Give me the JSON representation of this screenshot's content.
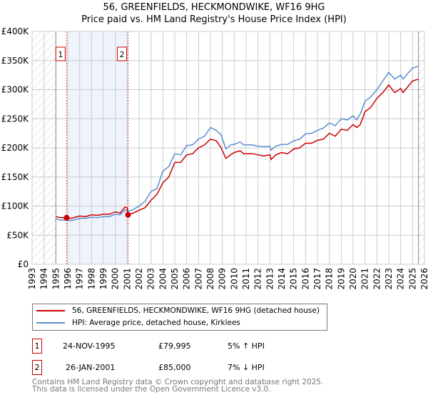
{
  "chart_data": {
    "type": "line",
    "title": "56, GREENFIELDS, HECKMONDWIKE, WF16 9HG",
    "subtitle": "Price paid vs. HM Land Registry's House Price Index (HPI)",
    "xlim": [
      1993,
      2026
    ],
    "ylim": [
      0,
      400000
    ],
    "x_ticks": [
      "1993",
      "1994",
      "1995",
      "1996",
      "1997",
      "1998",
      "1999",
      "2000",
      "2001",
      "2002",
      "2003",
      "2004",
      "2005",
      "2006",
      "2007",
      "2008",
      "2009",
      "2010",
      "2011",
      "2012",
      "2013",
      "2014",
      "2015",
      "2016",
      "2017",
      "2018",
      "2019",
      "2020",
      "2021",
      "2022",
      "2023",
      "2024",
      "2025",
      "2026"
    ],
    "y_ticks": [
      {
        "v": 0,
        "label": "£0"
      },
      {
        "v": 50000,
        "label": "£50K"
      },
      {
        "v": 100000,
        "label": "£100K"
      },
      {
        "v": 150000,
        "label": "£150K"
      },
      {
        "v": 200000,
        "label": "£200K"
      },
      {
        "v": 250000,
        "label": "£250K"
      },
      {
        "v": 300000,
        "label": "£300K"
      },
      {
        "v": 350000,
        "label": "£350K"
      },
      {
        "v": 400000,
        "label": "£400K"
      }
    ],
    "grid": true,
    "hatched_ranges": [
      [
        1993,
        1995
      ],
      [
        2025.5,
        2026
      ]
    ],
    "shaded_range": [
      1995.9,
      2001.07
    ],
    "series": [
      {
        "name": "56, GREENFIELDS, HECKMONDWIKE, WF16 9HG (detached house)",
        "color": "#cc0000",
        "x": [
          1995,
          1995.4,
          1995.9,
          1996.3,
          1997,
          1997.5,
          1998,
          1998.5,
          1999,
          1999.5,
          2000,
          2000.4,
          2000.8,
          2001.0,
          2001.07,
          2001.5,
          2002,
          2002.5,
          2003,
          2003.5,
          2004,
          2004.5,
          2005,
          2005.5,
          2006,
          2006.5,
          2007,
          2007.5,
          2008,
          2008.5,
          2008.9,
          2009.3,
          2009.7,
          2010,
          2010.5,
          2010.8,
          2011,
          2011.5,
          2012,
          2012.5,
          2013,
          2013.1,
          2013.5,
          2014,
          2014.5,
          2015,
          2015.5,
          2016,
          2016.5,
          2017,
          2017.5,
          2018,
          2018.5,
          2019,
          2019.5,
          2020,
          2020.3,
          2020.6,
          2021,
          2021.5,
          2022,
          2022.5,
          2023,
          2023.5,
          2024,
          2024.2,
          2024.6,
          2025,
          2025.5
        ],
        "y": [
          82000,
          80000,
          80000,
          79000,
          83000,
          82000,
          85000,
          84000,
          86000,
          86000,
          90000,
          88000,
          98000,
          97000,
          85000,
          88000,
          93000,
          97000,
          110000,
          120000,
          140000,
          150000,
          175000,
          175000,
          188000,
          190000,
          200000,
          205000,
          215000,
          212000,
          200000,
          182000,
          188000,
          192000,
          195000,
          190000,
          190000,
          190000,
          188000,
          186000,
          188000,
          180000,
          188000,
          192000,
          190000,
          198000,
          200000,
          208000,
          208000,
          213000,
          215000,
          225000,
          220000,
          232000,
          230000,
          240000,
          235000,
          240000,
          262000,
          270000,
          285000,
          295000,
          308000,
          295000,
          302000,
          295000,
          305000,
          315000,
          318000
        ]
      },
      {
        "name": "HPI: Average price, detached house, Kirklees",
        "color": "#5b8fd0",
        "x": [
          1995,
          1995.4,
          1995.9,
          1996.3,
          1997,
          1997.5,
          1998,
          1998.5,
          1999,
          1999.5,
          2000,
          2000.4,
          2000.8,
          2001.0,
          2001.07,
          2001.5,
          2002,
          2002.5,
          2003,
          2003.5,
          2004,
          2004.5,
          2005,
          2005.5,
          2006,
          2006.5,
          2007,
          2007.5,
          2008,
          2008.5,
          2008.9,
          2009.3,
          2009.7,
          2010,
          2010.5,
          2010.8,
          2011,
          2011.5,
          2012,
          2012.5,
          2013,
          2013.1,
          2013.5,
          2014,
          2014.5,
          2015,
          2015.5,
          2016,
          2016.5,
          2017,
          2017.5,
          2018,
          2018.5,
          2019,
          2019.5,
          2020,
          2020.3,
          2020.6,
          2021,
          2021.5,
          2022,
          2022.5,
          2023,
          2023.5,
          2024,
          2024.2,
          2024.6,
          2025,
          2025.5
        ],
        "y": [
          78000,
          76000,
          76000,
          75000,
          79000,
          79000,
          81000,
          80000,
          82000,
          82000,
          86000,
          85000,
          93000,
          92000,
          91000,
          94000,
          100000,
          108000,
          125000,
          130000,
          160000,
          168000,
          190000,
          188000,
          204000,
          205000,
          215000,
          220000,
          235000,
          230000,
          222000,
          198000,
          205000,
          206000,
          210000,
          205000,
          205000,
          205000,
          203000,
          202000,
          203000,
          196000,
          203000,
          206000,
          206000,
          212000,
          215000,
          224000,
          225000,
          230000,
          234000,
          243000,
          238000,
          250000,
          248000,
          255000,
          248000,
          258000,
          280000,
          288000,
          300000,
          315000,
          330000,
          318000,
          325000,
          318000,
          328000,
          337000,
          340000
        ]
      }
    ],
    "sales": [
      {
        "label": "1",
        "x": 1995.9,
        "y": 79995
      },
      {
        "label": "2",
        "x": 2001.07,
        "y": 85000
      }
    ]
  },
  "legend": {
    "property": "56, GREENFIELDS, HECKMONDWIKE, WF16 9HG (detached house)",
    "hpi": "HPI: Average price, detached house, Kirklees"
  },
  "transactions": [
    {
      "num": "1",
      "date": "24-NOV-1995",
      "price": "£79,995",
      "hpi": "5% ↑ HPI"
    },
    {
      "num": "2",
      "date": "26-JAN-2001",
      "price": "£85,000",
      "hpi": "7% ↓ HPI"
    }
  ],
  "footer": {
    "line1": "Contains HM Land Registry data © Crown copyright and database right 2025.",
    "line2": "This data is licensed under the Open Government Licence v3.0."
  },
  "colors": {
    "property": "#cc0000",
    "hpi": "#5b8fd0",
    "shade": "#eef3fc",
    "grid": "#cccccc"
  }
}
